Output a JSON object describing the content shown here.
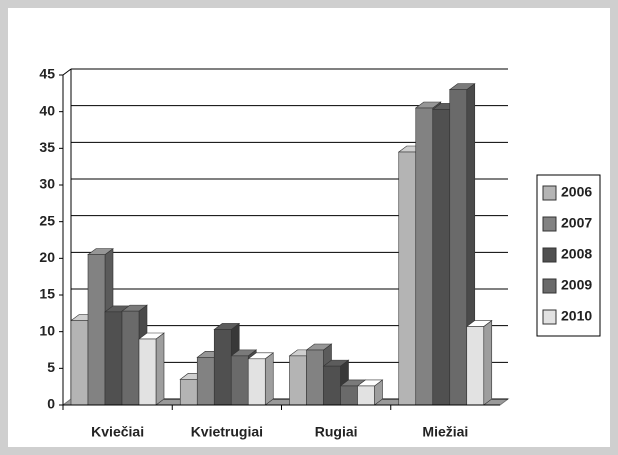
{
  "chart_data": {
    "type": "bar3d",
    "categories": [
      "Kviečiai",
      "Kvietrugiai",
      "Rugiai",
      "Miežiai"
    ],
    "series": [
      {
        "name": "2006",
        "color": "#b4b4b4",
        "values": [
          11.5,
          3.5,
          6.7,
          34.5
        ]
      },
      {
        "name": "2007",
        "color": "#828282",
        "values": [
          20.5,
          6.5,
          7.5,
          40.5
        ]
      },
      {
        "name": "2008",
        "color": "#505050",
        "values": [
          12.7,
          10.3,
          5.3,
          40.3
        ]
      },
      {
        "name": "2009",
        "color": "#6a6a6a",
        "values": [
          12.8,
          6.7,
          2.6,
          43
        ]
      },
      {
        "name": "2010",
        "color": "#e2e2e2",
        "values": [
          9,
          6.3,
          2.6,
          10.7
        ]
      }
    ],
    "ylim": [
      0,
      45
    ],
    "yticks": [
      0,
      5,
      10,
      15,
      20,
      25,
      30,
      35,
      40,
      45
    ],
    "grid": true,
    "legend": "right"
  }
}
